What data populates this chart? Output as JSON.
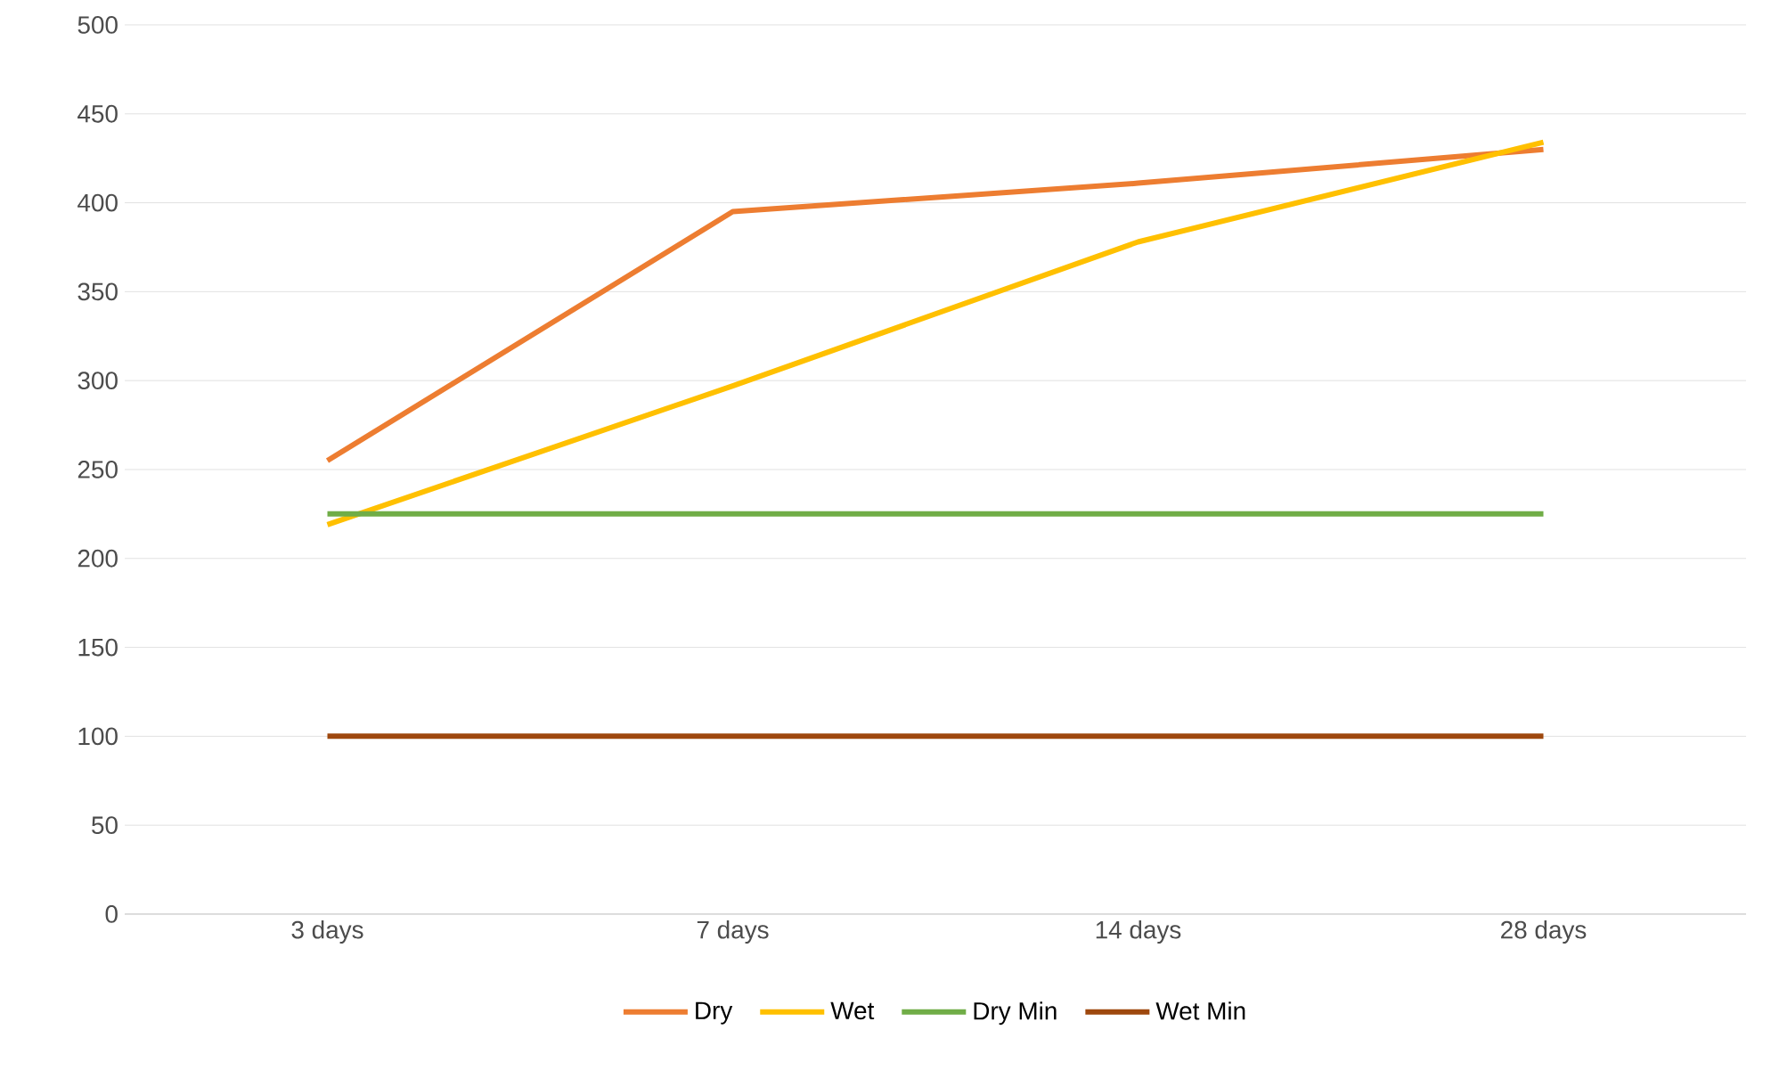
{
  "chart_data": {
    "type": "line",
    "categories": [
      "3 days",
      "7 days",
      "14 days",
      "28 days"
    ],
    "series": [
      {
        "name": "Dry",
        "color": "#ed7d31",
        "values": [
          255,
          395,
          411,
          430
        ]
      },
      {
        "name": "Wet",
        "color": "#ffc000",
        "values": [
          219,
          297,
          378,
          434
        ]
      },
      {
        "name": "Dry Min",
        "color": "#70ad47",
        "values": [
          225,
          225,
          225,
          225
        ]
      },
      {
        "name": "Wet Min",
        "color": "#9e480e",
        "values": [
          100,
          100,
          100,
          100
        ]
      }
    ],
    "ylim": [
      0,
      500
    ],
    "yticks": [
      0,
      50,
      100,
      150,
      200,
      250,
      300,
      350,
      400,
      450,
      500
    ],
    "grid": "y",
    "legend": "bottom"
  }
}
